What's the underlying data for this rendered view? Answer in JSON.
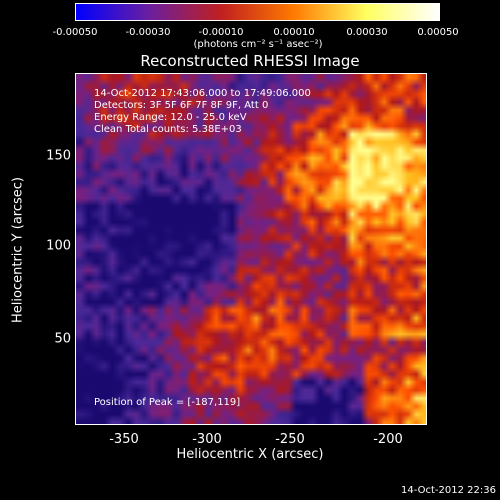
{
  "colorbar": {
    "tick_labels": [
      "-0.00050",
      "-0.00030",
      "-0.00010",
      "0.00010",
      "0.00030",
      "0.00050"
    ],
    "units": "(photons cm⁻² s⁻¹ asec⁻²)",
    "colormap": [
      "#0000ff",
      "#6a1fa0",
      "#c02020",
      "#ff7a00",
      "#ffff60",
      "#ffffff"
    ]
  },
  "plot": {
    "title": "Reconstructed RHESSI Image",
    "info_lines": [
      "14-Oct-2012 17:43:06.000 to 17:49:06.000",
      "Detectors: 3F 5F 6F 7F 8F 9F, Att 0",
      "Energy Range: 12.0 - 25.0 keV",
      "Clean     Total counts: 5.38E+03"
    ],
    "peak_text": "Position of Peak = [-187,119]",
    "xlabel": "Heliocentric X (arcsec)",
    "ylabel": "Heliocentric Y (arcsec)",
    "xticks": [
      "-350",
      "-300",
      "-250",
      "-200"
    ],
    "yticks": [
      "150",
      "100",
      "50"
    ],
    "xlim": [
      -375,
      -180
    ],
    "ylim": [
      5,
      200
    ]
  },
  "timestamp": "14-Oct-2012 22:36"
}
